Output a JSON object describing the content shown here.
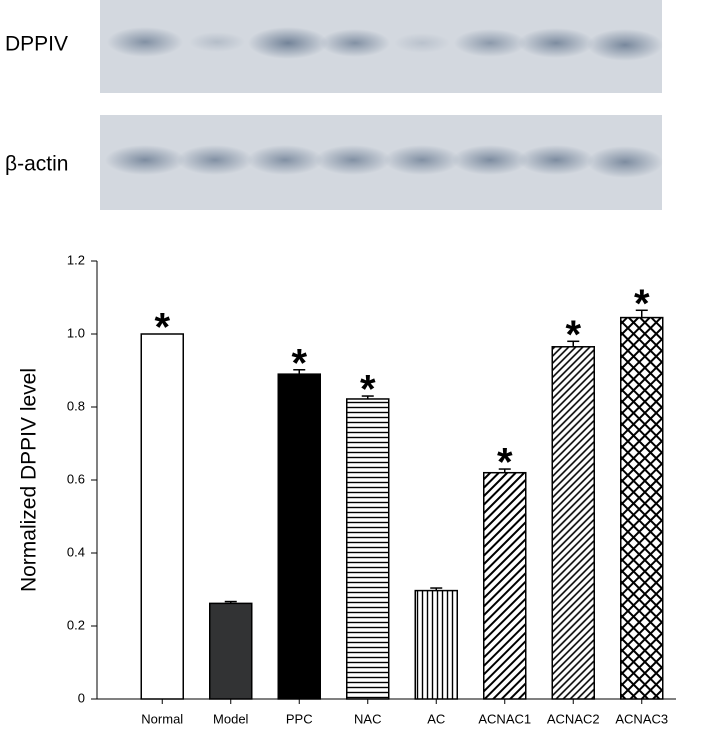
{
  "blot": {
    "labels": [
      "DPPIV",
      "β-actin"
    ]
  },
  "chart_data": {
    "type": "bar",
    "y_label": "Normalized DPPIV level",
    "categories": [
      "Normal",
      "Model",
      "PPC",
      "NAC",
      "AC",
      "ACNAC1",
      "ACNAC2",
      "ACNAC3"
    ],
    "values": [
      1.0,
      0.262,
      0.89,
      0.822,
      0.297,
      0.62,
      0.965,
      1.045
    ],
    "errors": [
      0,
      0.005,
      0.012,
      0.008,
      0.007,
      0.01,
      0.015,
      0.02
    ],
    "significance": [
      "*",
      null,
      "*",
      "*",
      null,
      "*",
      "*",
      "*"
    ],
    "fills": [
      "white",
      "darkgray",
      "black",
      "horizontal",
      "vertical",
      "diagonal",
      "diagonal-dense",
      "crosshatch"
    ],
    "ylim": [
      0,
      1.2
    ],
    "yticks": [
      0,
      0.2,
      0.4,
      0.6,
      0.8,
      {
        "value": 1.0,
        "label": "1.0"
      },
      1.2
    ]
  }
}
